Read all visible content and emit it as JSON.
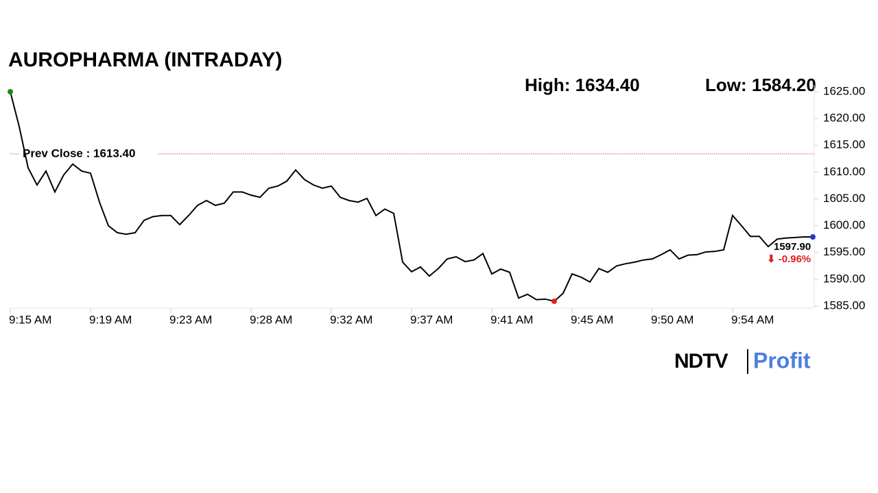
{
  "chart_data": {
    "type": "line",
    "title": "AUROPHARMA (INTRADAY)",
    "high_label": "High: 1634.40",
    "low_label": "Low: 1584.20",
    "prev_close": {
      "label": "Prev Close : 1613.40",
      "value": 1613.4
    },
    "last_label": "1597.90",
    "change_label": "⬇ -0.96%",
    "logo": {
      "left": "NDTV",
      "right": "Profit"
    },
    "color": "#000000",
    "categories": [
      "9:15 AM",
      null,
      null,
      null,
      null,
      null,
      null,
      null,
      null,
      "9:19 AM",
      null,
      null,
      null,
      null,
      null,
      null,
      null,
      null,
      "9:23 AM",
      null,
      null,
      null,
      null,
      null,
      null,
      null,
      null,
      "9:28 AM",
      null,
      null,
      null,
      null,
      null,
      null,
      null,
      null,
      "9:32 AM",
      null,
      null,
      null,
      null,
      null,
      null,
      null,
      null,
      "9:37 AM",
      null,
      null,
      null,
      null,
      null,
      null,
      null,
      null,
      "9:41 AM",
      null,
      null,
      null,
      null,
      null,
      null,
      null,
      null,
      "9:45 AM",
      null,
      null,
      null,
      null,
      null,
      null,
      null,
      null,
      "9:50 AM",
      null,
      null,
      null,
      null,
      null,
      null,
      null,
      null,
      "9:54 AM",
      null,
      null,
      null,
      null,
      null,
      null,
      null,
      null,
      null
    ],
    "values": [
      1625.0,
      1618.5,
      1610.8,
      1607.6,
      1610.2,
      1606.3,
      1609.5,
      1611.5,
      1610.2,
      1609.8,
      1604.4,
      1600.0,
      1598.7,
      1598.4,
      1598.7,
      1601.0,
      1601.7,
      1601.9,
      1601.9,
      1600.2,
      1601.9,
      1603.8,
      1604.7,
      1603.8,
      1604.2,
      1606.3,
      1606.3,
      1605.7,
      1605.3,
      1607.0,
      1607.4,
      1608.3,
      1610.4,
      1608.6,
      1607.6,
      1607.0,
      1607.4,
      1605.3,
      1604.7,
      1604.4,
      1605.1,
      1601.9,
      1603.1,
      1602.3,
      1593.2,
      1591.4,
      1592.3,
      1590.6,
      1592.0,
      1593.8,
      1594.2,
      1593.3,
      1593.6,
      1594.8,
      1591.0,
      1591.9,
      1591.3,
      1586.5,
      1587.2,
      1586.2,
      1586.3,
      1585.9,
      1587.4,
      1591.0,
      1590.4,
      1589.5,
      1592.0,
      1591.3,
      1592.5,
      1592.9,
      1593.2,
      1593.6,
      1593.8,
      1594.6,
      1595.5,
      1593.8,
      1594.5,
      1594.6,
      1595.1,
      1595.2,
      1595.5,
      1601.9,
      1600.0,
      1598.0,
      1598.0,
      1596.1,
      1597.5,
      1597.7,
      1597.8,
      1597.9,
      1597.9
    ],
    "ylim": [
      1585,
      1625
    ],
    "yticks": [
      {
        "value": 1585,
        "label": "1585.00"
      },
      {
        "value": 1590,
        "label": "1590.00"
      },
      {
        "value": 1595,
        "label": "1595.00"
      },
      {
        "value": 1600,
        "label": "1600.00"
      },
      {
        "value": 1605,
        "label": "1605.00"
      },
      {
        "value": 1610,
        "label": "1610.00"
      },
      {
        "value": 1615,
        "label": "1615.00"
      },
      {
        "value": 1620,
        "label": "1620.00"
      },
      {
        "value": 1625,
        "label": "1625.00"
      }
    ]
  }
}
